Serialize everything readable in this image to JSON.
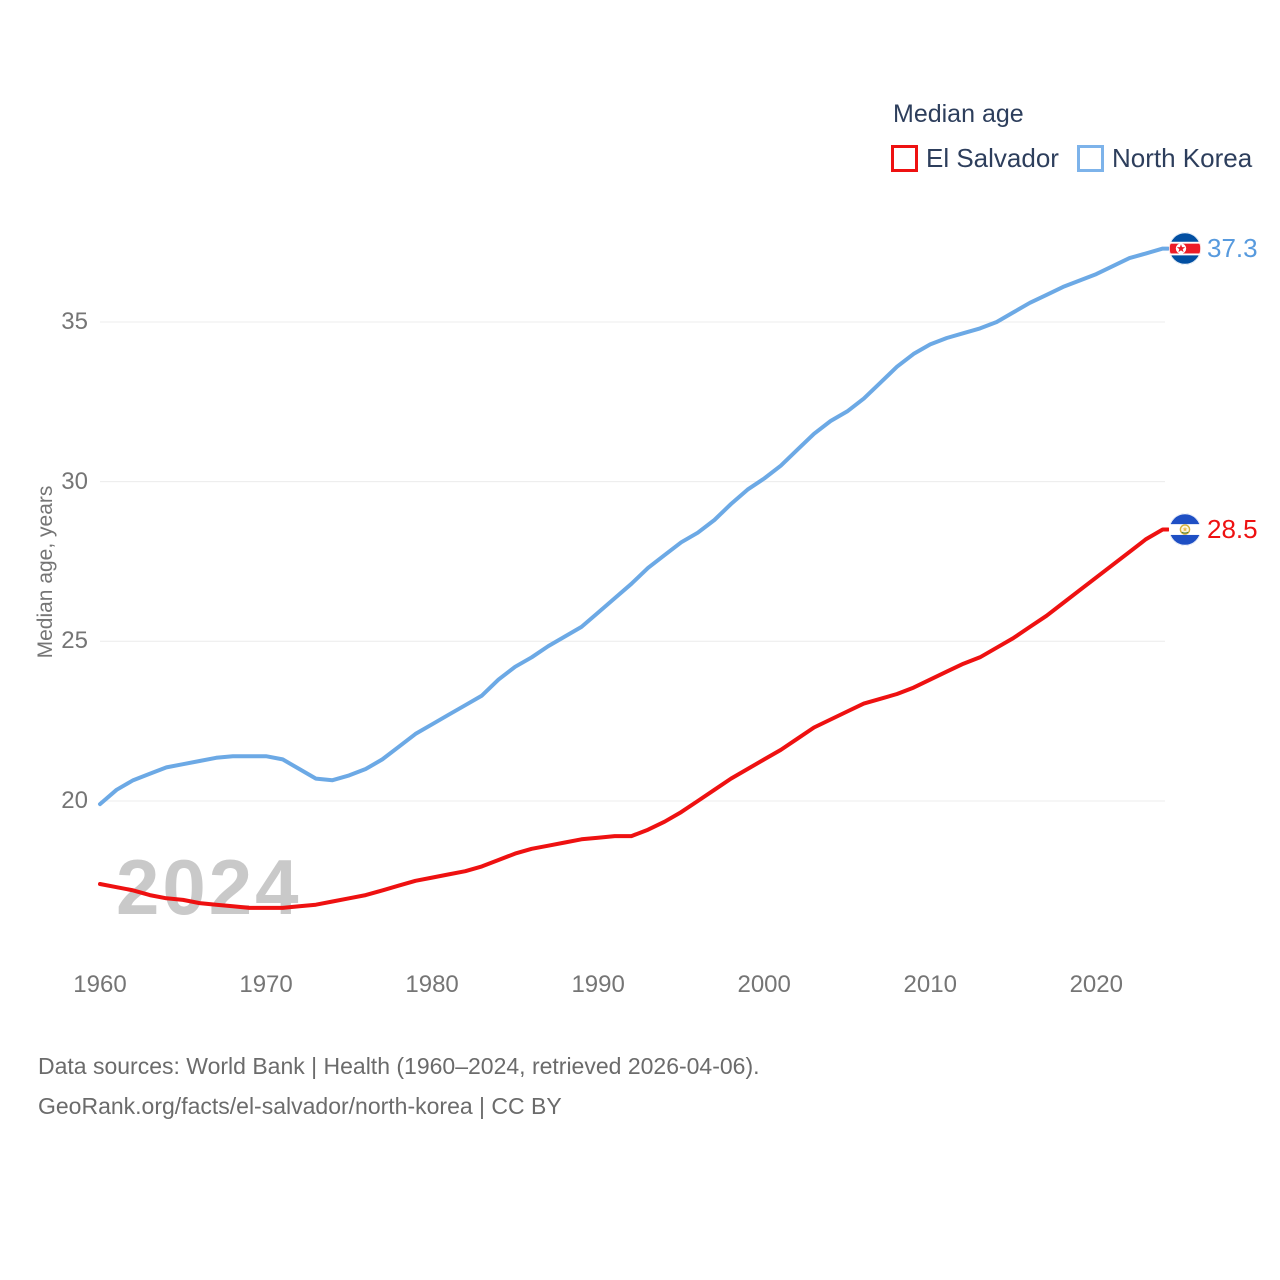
{
  "watermark": "2024",
  "legend": {
    "title": "Median age",
    "items": [
      {
        "label": "El Salvador",
        "color": "#ee1111"
      },
      {
        "label": "North Korea",
        "color": "#7db3ea"
      }
    ]
  },
  "footer": {
    "line1": "Data sources: World Bank | Health (1960–2024, retrieved 2026-04-06).",
    "line2": "GeoRank.org/facts/el-salvador/north-korea | CC BY"
  },
  "chart_data": {
    "type": "line",
    "title": "Median age",
    "ylabel": "Median age, years",
    "xlim": [
      1960,
      2024
    ],
    "y_ticks": [
      20,
      25,
      30,
      35
    ],
    "x_ticks": [
      1960,
      1970,
      1980,
      1990,
      2000,
      2010,
      2020
    ],
    "grid": "horizontal",
    "legend_position": "top-right",
    "x": [
      1960,
      1961,
      1962,
      1963,
      1964,
      1965,
      1966,
      1967,
      1968,
      1969,
      1970,
      1971,
      1972,
      1973,
      1974,
      1975,
      1976,
      1977,
      1978,
      1979,
      1980,
      1981,
      1982,
      1983,
      1984,
      1985,
      1986,
      1987,
      1988,
      1989,
      1990,
      1991,
      1992,
      1993,
      1994,
      1995,
      1996,
      1997,
      1998,
      1999,
      2000,
      2001,
      2002,
      2003,
      2004,
      2005,
      2006,
      2007,
      2008,
      2009,
      2010,
      2011,
      2012,
      2013,
      2014,
      2015,
      2016,
      2017,
      2018,
      2019,
      2020,
      2021,
      2022,
      2023,
      2024
    ],
    "series": [
      {
        "name": "El Salvador",
        "color": "#ee1111",
        "end_label": "28.5",
        "flag": "el-salvador",
        "values": [
          17.4,
          17.3,
          17.2,
          17.05,
          16.95,
          16.9,
          16.8,
          16.75,
          16.7,
          16.65,
          16.65,
          16.65,
          16.7,
          16.75,
          16.85,
          16.95,
          17.05,
          17.2,
          17.35,
          17.5,
          17.6,
          17.7,
          17.8,
          17.95,
          18.15,
          18.35,
          18.5,
          18.6,
          18.7,
          18.8,
          18.85,
          18.9,
          18.9,
          19.1,
          19.35,
          19.65,
          20.0,
          20.35,
          20.7,
          21.0,
          21.3,
          21.6,
          21.95,
          22.3,
          22.55,
          22.8,
          23.05,
          23.2,
          23.35,
          23.55,
          23.8,
          24.05,
          24.3,
          24.5,
          24.8,
          25.1,
          25.45,
          25.8,
          26.2,
          26.6,
          27.0,
          27.4,
          27.8,
          28.2,
          28.5
        ]
      },
      {
        "name": "North Korea",
        "color": "#6ca9e5",
        "end_label": "37.3",
        "flag": "north-korea",
        "values": [
          19.9,
          20.35,
          20.65,
          20.85,
          21.05,
          21.15,
          21.25,
          21.35,
          21.4,
          21.4,
          21.4,
          21.3,
          21.0,
          20.7,
          20.65,
          20.8,
          21.0,
          21.3,
          21.7,
          22.1,
          22.4,
          22.7,
          23.0,
          23.3,
          23.8,
          24.2,
          24.5,
          24.85,
          25.15,
          25.45,
          25.9,
          26.35,
          26.8,
          27.3,
          27.7,
          28.1,
          28.4,
          28.8,
          29.3,
          29.75,
          30.1,
          30.5,
          31.0,
          31.5,
          31.9,
          32.2,
          32.6,
          33.1,
          33.6,
          34.0,
          34.3,
          34.5,
          34.65,
          34.8,
          35.0,
          35.3,
          35.6,
          35.85,
          36.1,
          36.3,
          36.5,
          36.75,
          37.0,
          37.15,
          37.3
        ]
      }
    ]
  }
}
